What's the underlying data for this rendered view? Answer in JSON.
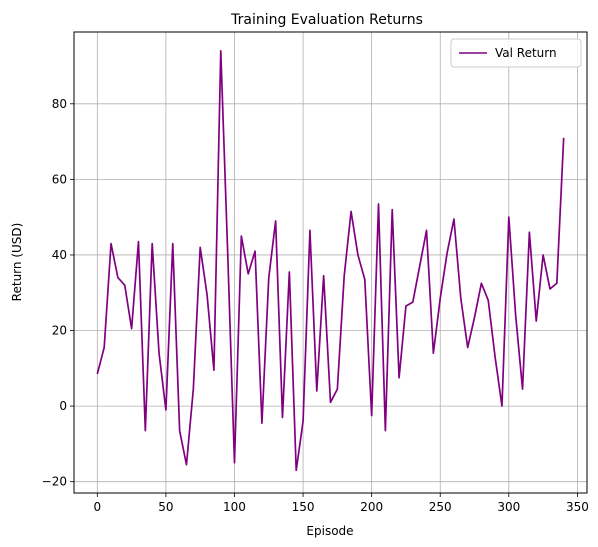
{
  "chart_data": {
    "type": "line",
    "title": "Training Evaluation Returns",
    "xlabel": "Episode",
    "ylabel": "Return (USD)",
    "xlim": [
      -17,
      357
    ],
    "ylim": [
      -23,
      99
    ],
    "xticks": [
      0,
      50,
      100,
      150,
      200,
      250,
      300,
      350
    ],
    "yticks": [
      -20,
      0,
      20,
      40,
      60,
      80
    ],
    "grid": true,
    "legend_position": "top-right",
    "series": [
      {
        "name": "Val Return",
        "color": "#800080",
        "x": [
          0,
          5,
          10,
          15,
          20,
          25,
          30,
          35,
          40,
          45,
          50,
          55,
          60,
          65,
          70,
          75,
          80,
          85,
          90,
          95,
          100,
          105,
          110,
          115,
          120,
          125,
          130,
          135,
          140,
          145,
          150,
          155,
          160,
          165,
          170,
          175,
          180,
          185,
          190,
          195,
          200,
          205,
          210,
          215,
          220,
          225,
          230,
          235,
          240,
          245,
          250,
          255,
          260,
          265,
          270,
          275,
          280,
          285,
          290,
          295,
          300,
          305,
          310,
          315,
          320,
          325,
          330,
          335,
          340
        ],
        "values": [
          8.5,
          15.5,
          43,
          34,
          32,
          20.5,
          43.5,
          -6.5,
          43,
          14,
          -1,
          43,
          -6.5,
          -15.5,
          4.5,
          42,
          29.5,
          9.5,
          94,
          41,
          -15,
          45,
          35,
          41,
          -4.5,
          34,
          49,
          -3,
          35.5,
          -17,
          -4,
          46.5,
          4,
          34.5,
          1,
          4.5,
          34.5,
          51.5,
          40,
          33.5,
          -2.5,
          53.5,
          -6.5,
          52,
          7.5,
          26.5,
          27.5,
          37,
          46.5,
          14,
          28.5,
          40.5,
          49.5,
          28.5,
          15.5,
          23.5,
          32.5,
          28,
          13,
          0,
          50,
          24,
          4.5,
          46,
          22.5,
          40,
          31,
          32.5,
          71
        ]
      }
    ]
  }
}
